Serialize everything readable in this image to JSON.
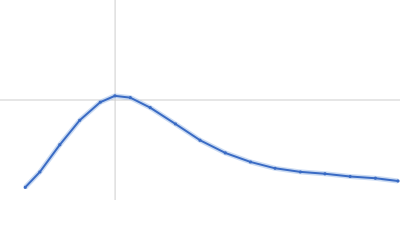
{
  "chart_data": {
    "type": "scatter",
    "x": [
      0.38,
      0.6,
      0.9,
      1.2,
      1.51,
      1.73,
      1.96,
      2.26,
      2.64,
      3.01,
      3.39,
      3.77,
      4.14,
      4.52,
      4.89,
      5.27,
      5.65,
      5.99
    ],
    "series": [
      {
        "color": "#3a6bc4",
        "values": [
          0.14,
          0.31,
          0.61,
          0.88,
          1.08,
          1.15,
          1.13,
          1.02,
          0.84,
          0.66,
          0.52,
          0.42,
          0.35,
          0.31,
          0.29,
          0.26,
          0.24,
          0.21
        ]
      }
    ],
    "xlim": [
      0,
      6.02
    ],
    "ylim": [
      0,
      2.208
    ],
    "vlines": [
      1.732
    ],
    "hlines": [
      1.104
    ],
    "reference_color": "#cccccc"
  }
}
